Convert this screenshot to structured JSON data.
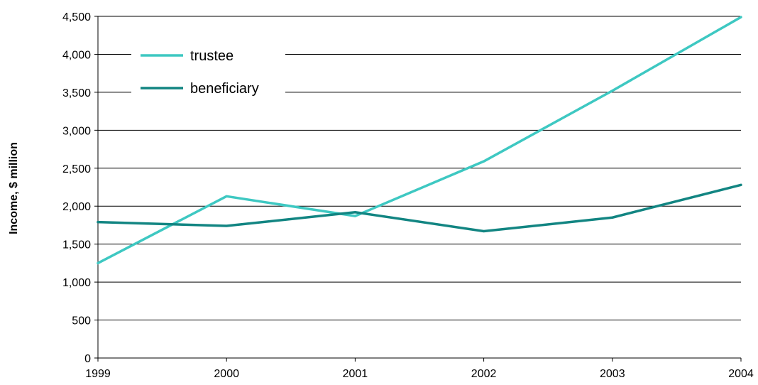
{
  "chart_data": {
    "type": "line",
    "x": [
      1999,
      2000,
      2001,
      2002,
      2003,
      2004
    ],
    "x_tick_labels": [
      "1999",
      "2000",
      "2001",
      "2002",
      "2003",
      "2004"
    ],
    "ylabel": "Income, $ million",
    "ylim": [
      0,
      4500
    ],
    "y_ticks": [
      0,
      500,
      1000,
      1500,
      2000,
      2500,
      3000,
      3500,
      4000,
      4500
    ],
    "y_tick_labels": [
      "0",
      "500",
      "1,000",
      "1,500",
      "2,000",
      "2,500",
      "3,000",
      "3,500",
      "4,000",
      "4,500"
    ],
    "grid": true,
    "legend_position": "top-left",
    "series": [
      {
        "name": "trustee",
        "color": "#3ec8c2",
        "values": [
          1250,
          2130,
          1870,
          2590,
          3520,
          4490
        ]
      },
      {
        "name": "beneficiary",
        "color": "#128582",
        "values": [
          1790,
          1740,
          1920,
          1670,
          1850,
          2280
        ]
      }
    ]
  }
}
